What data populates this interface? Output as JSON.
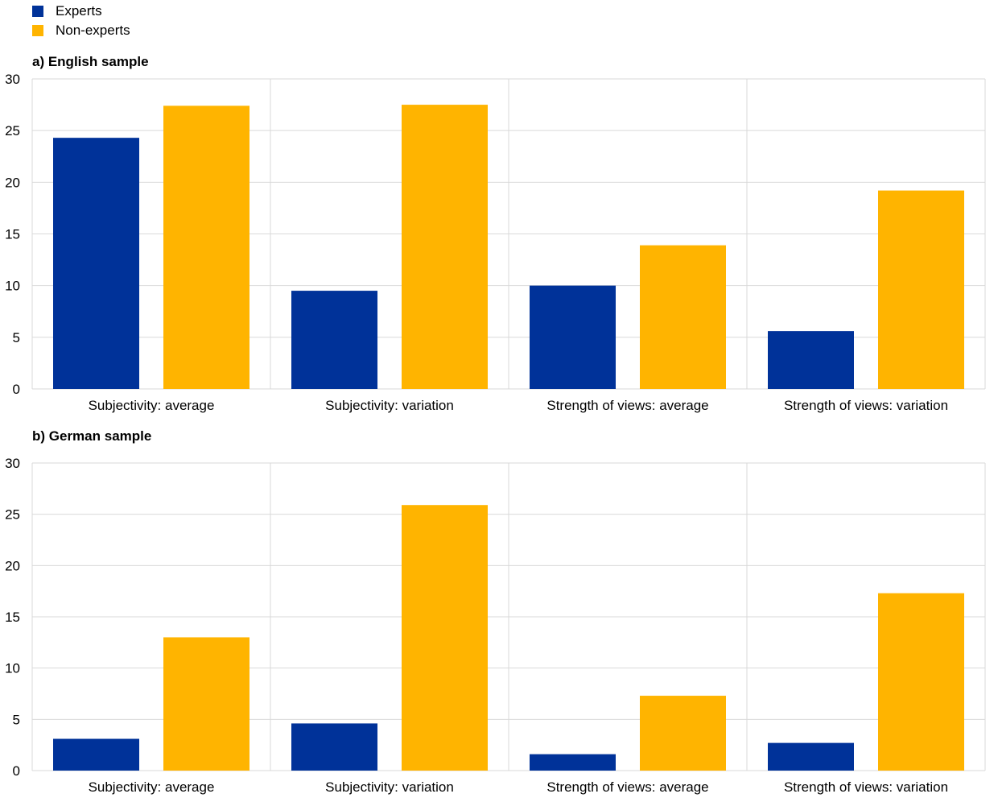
{
  "colors": {
    "experts": "#003299",
    "non_experts": "#FFB400",
    "grid": "#D9D9D9"
  },
  "legend": [
    {
      "label": "Experts",
      "color": "#003299"
    },
    {
      "label": "Non-experts",
      "color": "#FFB400"
    }
  ],
  "chart_data": [
    {
      "type": "bar",
      "title": "a) English sample",
      "categories": [
        "Subjectivity: average",
        "Subjectivity: variation",
        "Strength of views: average",
        "Strength of views: variation"
      ],
      "series": [
        {
          "name": "Experts",
          "values": [
            24.3,
            9.5,
            10.0,
            5.6
          ]
        },
        {
          "name": "Non-experts",
          "values": [
            27.4,
            27.5,
            13.9,
            19.2
          ]
        }
      ],
      "ylim": [
        0,
        30
      ],
      "yticks": [
        0,
        5,
        10,
        15,
        20,
        25,
        30
      ],
      "grid": true,
      "legend_position": "top-left"
    },
    {
      "type": "bar",
      "title": "b) German sample",
      "categories": [
        "Subjectivity: average",
        "Subjectivity: variation",
        "Strength of views: average",
        "Strength of views: variation"
      ],
      "series": [
        {
          "name": "Experts",
          "values": [
            3.1,
            4.6,
            1.6,
            2.7
          ]
        },
        {
          "name": "Non-experts",
          "values": [
            13.0,
            25.9,
            7.3,
            17.3
          ]
        }
      ],
      "ylim": [
        0,
        30
      ],
      "yticks": [
        0,
        5,
        10,
        15,
        20,
        25,
        30
      ],
      "grid": true,
      "legend_position": "top-left"
    }
  ]
}
